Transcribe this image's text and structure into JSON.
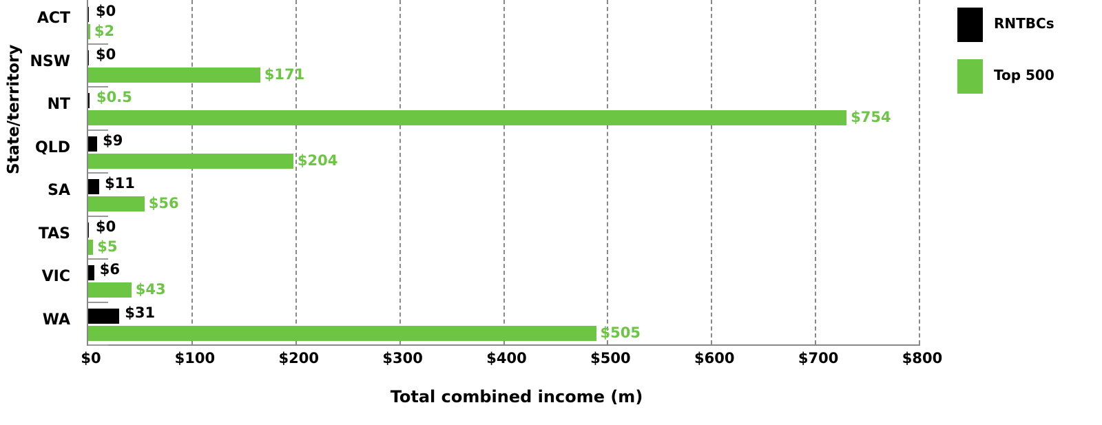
{
  "chart_data": {
    "type": "bar",
    "orientation": "horizontal",
    "title": "",
    "xlabel": "Total combined income (m)",
    "ylabel": "State/territory",
    "xlim": [
      0,
      800
    ],
    "xticks": [
      "$0",
      "$100",
      "$200",
      "$300",
      "$400",
      "$500",
      "$600",
      "$700",
      "$800"
    ],
    "grid": "vertical dashed",
    "legend_position": "right",
    "categories": [
      "ACT",
      "NSW",
      "NT",
      "QLD",
      "SA",
      "TAS",
      "VIC",
      "WA"
    ],
    "series": [
      {
        "name": "RNTBCs",
        "color": "#000000",
        "values": [
          0,
          0,
          0.5,
          9,
          11,
          0,
          6,
          31
        ],
        "labels": [
          "$0",
          "$0",
          "$0.5",
          "$9",
          "$11",
          "$0",
          "$6",
          "$31"
        ],
        "label_color": "#000000"
      },
      {
        "name": "Top 500",
        "color": "#6cc644",
        "values": [
          2,
          171,
          754,
          204,
          56,
          5,
          43,
          505
        ],
        "labels": [
          "$2",
          "$171",
          "$754",
          "$204",
          "$56",
          "$5",
          "$43",
          "$505"
        ],
        "label_color": "#6cc644"
      }
    ]
  },
  "legend": {
    "items": [
      {
        "label": "RNTBCs",
        "color": "#000000"
      },
      {
        "label": "Top 500",
        "color": "#6cc644"
      }
    ]
  }
}
